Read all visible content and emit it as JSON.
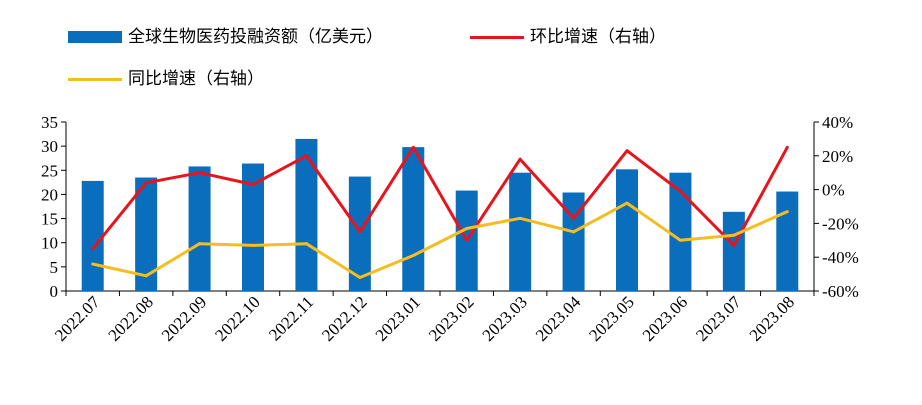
{
  "colors": {
    "bar": "#0a6ebd",
    "mom": "#e8141c",
    "yoy": "#f5bd1f"
  },
  "legend": {
    "bar_label": "全球生物医药投融资额（亿美元）",
    "mom_label": "环比增速（右轴）",
    "yoy_label": "同比增速（右轴）"
  },
  "chart_data": {
    "type": "bar",
    "categories": [
      "2022.07",
      "2022.08",
      "2022.09",
      "2022.10",
      "2022.11",
      "2022.12",
      "2023.01",
      "2023.02",
      "2023.03",
      "2023.04",
      "2023.05",
      "2023.06",
      "2023.07",
      "2023.08"
    ],
    "series": [
      {
        "name": "全球生物医药投融资额（亿美元）",
        "type": "bar",
        "axis": "left",
        "values": [
          22.8,
          23.5,
          25.8,
          26.4,
          31.5,
          23.7,
          29.8,
          20.8,
          24.5,
          20.4,
          25.2,
          24.5,
          16.4,
          20.6
        ]
      },
      {
        "name": "环比增速（右轴）",
        "type": "line",
        "axis": "right",
        "values": [
          -35,
          4,
          10,
          3,
          20,
          -25,
          25,
          -30,
          18,
          -17,
          23,
          -1,
          -33,
          25
        ]
      },
      {
        "name": "同比增速（右轴）",
        "type": "line",
        "axis": "right",
        "values": [
          -44,
          -51,
          -32,
          -33,
          -32,
          -52,
          -39,
          -23,
          -17,
          -25,
          -8,
          -30,
          -27,
          -13
        ]
      }
    ],
    "yleft": {
      "ylim": [
        0,
        35
      ],
      "ticks": [
        "0",
        "5",
        "10",
        "15",
        "20",
        "25",
        "30",
        "35"
      ]
    },
    "yright": {
      "ylim": [
        -60,
        40
      ],
      "ticks": [
        "-60%",
        "-40%",
        "-20%",
        "0%",
        "20%",
        "40%"
      ]
    },
    "grid": false,
    "legend_position": "top-left"
  }
}
